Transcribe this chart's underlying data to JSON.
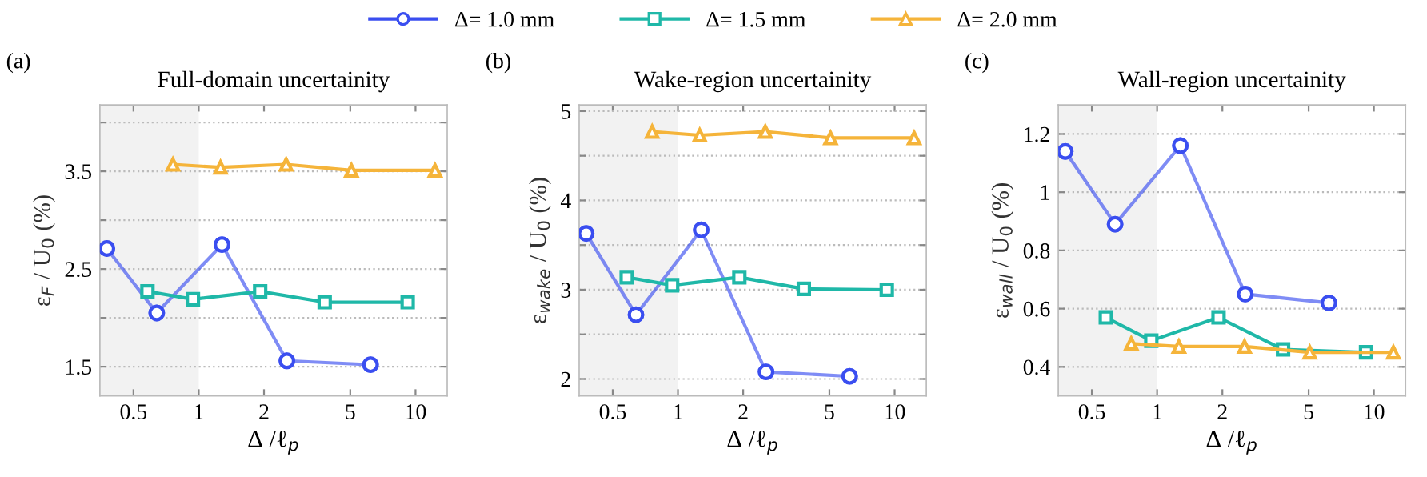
{
  "chart_data": [
    {
      "type": "line",
      "title": "Full-domain uncertainity",
      "xlabel": "Δ /ℓ$_{p}$",
      "ylabel": "ε$_{F}$ / U$_{0}$ (%)",
      "annotations": [
        "(a)"
      ],
      "log": "x",
      "xlim": [
        0.35,
        14
      ],
      "xticks": [
        0.5,
        1,
        2,
        5,
        10
      ],
      "ylim": [
        1.2,
        4.18
      ],
      "yticks": [
        1.5,
        {
          "value": 2,
          "label": null
        },
        2.5,
        {
          "value": 3,
          "label": null
        },
        3.5,
        {
          "value": 4,
          "label": null
        }
      ],
      "grid": "y",
      "legend": "top",
      "bands": [
        {
          "axis": "x",
          "from": 0.35,
          "to": 1,
          "color": "#f2f2f2"
        }
      ],
      "series": [
        {
          "name": "Δ= 1.0 mm",
          "color": "#3a4ef0",
          "marker": "circle",
          "x": [
            0.377,
            0.64,
            1.28,
            2.55,
            6.2
          ],
          "values": [
            2.71,
            2.05,
            2.75,
            1.56,
            1.52
          ]
        },
        {
          "name": "Δ= 1.5 mm",
          "color": "#1fb8a8",
          "marker": "square",
          "x": [
            0.58,
            0.94,
            1.92,
            3.81,
            9.2
          ],
          "values": [
            2.27,
            2.19,
            2.27,
            2.16,
            2.16
          ]
        },
        {
          "name": "Δ= 2.0 mm",
          "color": "#f5b43a",
          "marker": "triangle",
          "x": [
            0.76,
            1.26,
            2.53,
            5.06,
            12.3
          ],
          "values": [
            3.57,
            3.54,
            3.57,
            3.51,
            3.51
          ]
        }
      ]
    },
    {
      "type": "line",
      "title": "Wake-region uncertainity",
      "xlabel": "Δ /ℓ$_{p}$",
      "ylabel": "ε$_{wake}$ / U$_{0}$ (%)",
      "annotations": [
        "(b)"
      ],
      "log": "x",
      "xlim": [
        0.35,
        14
      ],
      "xticks": [
        0.5,
        1,
        2,
        5,
        10
      ],
      "ylim": [
        1.81,
        5.07
      ],
      "yticks": [
        2,
        {
          "value": 2.5,
          "label": null
        },
        3,
        {
          "value": 3.5,
          "label": null
        },
        4,
        {
          "value": 4.5,
          "label": null
        },
        5
      ],
      "grid": "y",
      "bands": [
        {
          "axis": "x",
          "from": 0.35,
          "to": 1,
          "color": "#f2f2f2"
        }
      ],
      "series": [
        {
          "color": "#3a4ef0",
          "marker": "circle",
          "x": [
            0.377,
            0.64,
            1.28,
            2.55,
            6.2
          ],
          "values": [
            3.63,
            2.72,
            3.67,
            2.08,
            2.03
          ]
        },
        {
          "color": "#1fb8a8",
          "marker": "square",
          "x": [
            0.58,
            0.94,
            1.92,
            3.81,
            9.2
          ],
          "values": [
            3.14,
            3.05,
            3.14,
            3.01,
            3.0
          ]
        },
        {
          "color": "#f5b43a",
          "marker": "triangle",
          "x": [
            0.76,
            1.26,
            2.53,
            5.06,
            12.3
          ],
          "values": [
            4.77,
            4.73,
            4.77,
            4.7,
            4.7
          ]
        }
      ]
    },
    {
      "type": "line",
      "title": "Wall-region uncertainity",
      "xlabel": "Δ /ℓ$_{p}$",
      "ylabel": "ε$_{wall}$ / U$_{0}$ (%)",
      "annotations": [
        "(c)"
      ],
      "log": "x",
      "xlim": [
        0.35,
        14
      ],
      "xticks": [
        0.5,
        1,
        2,
        5,
        10
      ],
      "ylim": [
        0.3,
        1.3
      ],
      "yticks": [
        0.4,
        0.6,
        0.8,
        1,
        1.2
      ],
      "grid": "y",
      "bands": [
        {
          "axis": "x",
          "from": 0.35,
          "to": 1,
          "color": "#f2f2f2"
        }
      ],
      "series": [
        {
          "color": "#3a4ef0",
          "marker": "circle",
          "x": [
            0.377,
            0.64,
            1.28,
            2.55,
            6.2
          ],
          "values": [
            1.14,
            0.89,
            1.16,
            0.65,
            0.62
          ]
        },
        {
          "color": "#1fb8a8",
          "marker": "square",
          "x": [
            0.58,
            0.94,
            1.92,
            3.81,
            9.2
          ],
          "values": [
            0.57,
            0.49,
            0.57,
            0.46,
            0.45
          ]
        },
        {
          "color": "#f5b43a",
          "marker": "triangle",
          "x": [
            0.76,
            1.26,
            2.53,
            5.06,
            12.3
          ],
          "values": [
            0.48,
            0.47,
            0.47,
            0.45,
            0.45
          ]
        }
      ]
    }
  ]
}
